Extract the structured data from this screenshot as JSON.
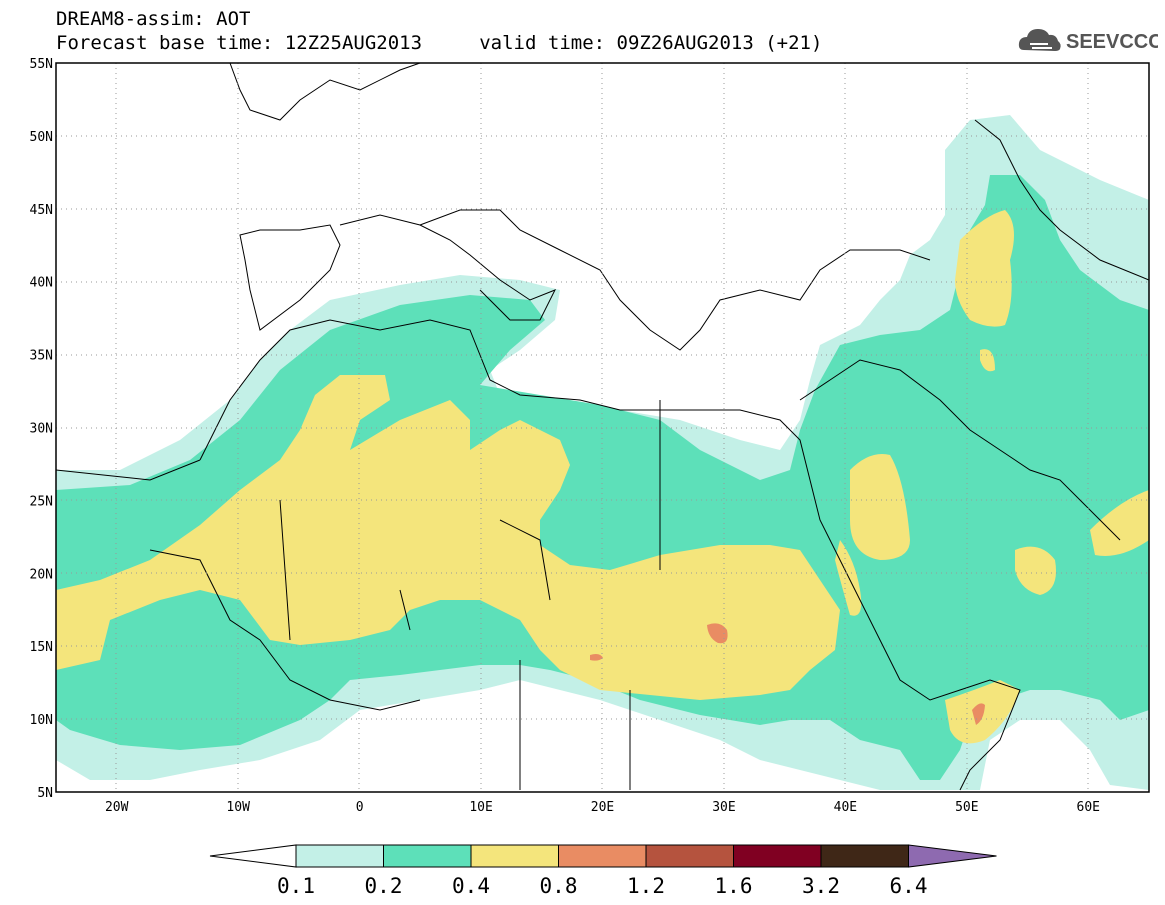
{
  "header": {
    "line1": "DREAM8-assim: AOT",
    "line2": "Forecast base time: 12Z25AUG2013     valid time: 09Z26AUG2013 (+21)",
    "logo_text": "SEEVCCC"
  },
  "map": {
    "lon_range": [
      -25,
      65
    ],
    "lat_range": [
      5,
      55
    ],
    "lat_labels": [
      "55N",
      "50N",
      "45N",
      "40N",
      "35N",
      "30N",
      "25N",
      "20N",
      "15N",
      "10N",
      "5N"
    ],
    "lon_labels": [
      "20W",
      "10W",
      "0",
      "10E",
      "20E",
      "30E",
      "40E",
      "50E",
      "60E"
    ]
  },
  "legend": {
    "ticks": [
      "0.1",
      "0.2",
      "0.4",
      "0.8",
      "1.2",
      "1.6",
      "3.2",
      "6.4"
    ],
    "colors": [
      "#ffffff",
      "#c3f0e7",
      "#5de0b9",
      "#f4e57c",
      "#e98c63",
      "#b5533e",
      "#800022",
      "#3f2717",
      "#8e6ab0"
    ]
  }
}
